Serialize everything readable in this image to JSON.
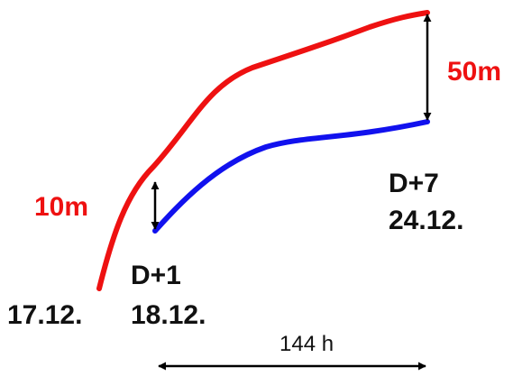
{
  "labels": {
    "red_gap": "10m",
    "end_gap": "50m",
    "start_date": "17.12.",
    "day1_tag": "D+1",
    "day1_date": "18.12.",
    "day7_tag": "D+7",
    "day7_date": "24.12.",
    "duration": "144 h"
  },
  "colors": {
    "red_curve": "#ee1111",
    "blue_curve": "#1111ee",
    "arrows": "#000000",
    "red_text": "#ee1111",
    "dark_text": "#111111"
  }
}
